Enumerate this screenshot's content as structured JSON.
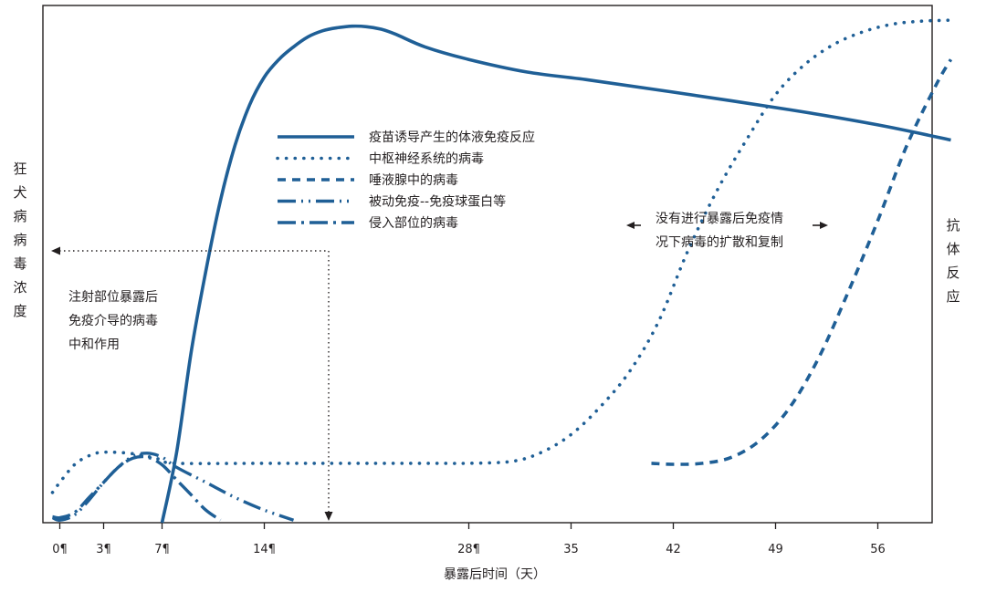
{
  "colors": {
    "series": "#1f5f96",
    "frame": "#231f20",
    "arrow": "#231f20",
    "background": "#ffffff"
  },
  "chart_data": {
    "type": "line",
    "xlabel": "暴露后时间（天）",
    "ylabel_left": "狂犬病病毒浓度",
    "ylabel_right": "抗体反应",
    "xlim": [
      -1,
      63
    ],
    "ylim": [
      0,
      100
    ],
    "y_ticks_shown": false,
    "grid": false,
    "legend_position": "top-center",
    "x_ticks": [
      {
        "value": 0,
        "label": "0¶"
      },
      {
        "value": 3,
        "label": "3¶"
      },
      {
        "value": 7,
        "label": "7¶"
      },
      {
        "value": 14,
        "label": "14¶"
      },
      {
        "value": 28,
        "label": "28¶"
      },
      {
        "value": 35,
        "label": "35"
      },
      {
        "value": 42,
        "label": "42"
      },
      {
        "value": 49,
        "label": "49"
      },
      {
        "value": 56,
        "label": "56"
      }
    ],
    "series": [
      {
        "name": "疫苗诱导产生的体液免疫反应",
        "style": "solid",
        "points": [
          [
            7,
            0
          ],
          [
            8,
            14
          ],
          [
            9,
            34
          ],
          [
            10,
            50
          ],
          [
            11,
            64
          ],
          [
            12,
            75
          ],
          [
            13,
            83
          ],
          [
            14,
            88.5
          ],
          [
            15,
            92
          ],
          [
            16,
            94.5
          ],
          [
            17,
            96.5
          ],
          [
            18,
            97.7
          ],
          [
            19,
            98.3
          ],
          [
            20,
            98.6
          ],
          [
            21,
            98.5
          ],
          [
            22,
            98
          ],
          [
            23,
            97
          ],
          [
            25,
            94.5
          ],
          [
            28,
            92
          ],
          [
            32,
            89.5
          ],
          [
            36,
            88
          ],
          [
            42,
            85.5
          ],
          [
            50,
            82
          ],
          [
            56,
            79
          ],
          [
            61,
            76
          ]
        ]
      },
      {
        "name": "中枢神经系统的病毒",
        "style": "dotted",
        "points": [
          [
            -0.5,
            6
          ],
          [
            0,
            8
          ],
          [
            1,
            11.5
          ],
          [
            2,
            13.3
          ],
          [
            3,
            14
          ],
          [
            5,
            13.7
          ],
          [
            7,
            12.5
          ],
          [
            8,
            11.8
          ],
          [
            15,
            11.8
          ],
          [
            25,
            11.8
          ],
          [
            28,
            11.8
          ],
          [
            31,
            12.2
          ],
          [
            33,
            14
          ],
          [
            35,
            17.5
          ],
          [
            37,
            23
          ],
          [
            39,
            30
          ],
          [
            41,
            40
          ],
          [
            43,
            54
          ],
          [
            45,
            66
          ],
          [
            47,
            76
          ],
          [
            49,
            85
          ],
          [
            51,
            91
          ],
          [
            53,
            95
          ],
          [
            55,
            97.5
          ],
          [
            57,
            99
          ],
          [
            59,
            99.6
          ],
          [
            61,
            99.8
          ]
        ]
      },
      {
        "name": "唾液腺中的病毒",
        "style": "dashed",
        "points": [
          [
            40.5,
            11.8
          ],
          [
            42,
            11.6
          ],
          [
            44,
            11.8
          ],
          [
            46,
            13
          ],
          [
            48,
            16.5
          ],
          [
            50,
            23
          ],
          [
            52,
            33
          ],
          [
            54,
            46
          ],
          [
            56,
            60
          ],
          [
            58,
            75
          ],
          [
            60,
            87
          ],
          [
            61,
            92
          ]
        ]
      },
      {
        "name": "被动免疫--免疫球蛋白等",
        "style": "dash-dot-dot",
        "points": [
          [
            -0.5,
            1
          ],
          [
            0,
            0.5
          ],
          [
            1,
            1.5
          ],
          [
            2,
            4.5
          ],
          [
            3,
            8
          ],
          [
            4,
            11
          ],
          [
            5,
            13.2
          ],
          [
            6,
            13.8
          ],
          [
            7,
            13
          ],
          [
            8,
            11
          ],
          [
            10,
            8
          ],
          [
            12,
            5
          ],
          [
            14,
            2.5
          ],
          [
            16,
            0.5
          ]
        ]
      },
      {
        "name": "侵入部位的病毒",
        "style": "dash-dot",
        "points": [
          [
            -0.5,
            1.2
          ],
          [
            0,
            1
          ],
          [
            1,
            2
          ],
          [
            2,
            5
          ],
          [
            3,
            8
          ],
          [
            4,
            11
          ],
          [
            5,
            12.8
          ],
          [
            6,
            13
          ],
          [
            7,
            11.5
          ],
          [
            8,
            8.5
          ],
          [
            9,
            5.5
          ],
          [
            10,
            2.5
          ],
          [
            11,
            0.5
          ]
        ]
      }
    ],
    "annotations": [
      {
        "text": "注射部位暴露后免疫介导的病毒中和作用",
        "lines": [
          "注射部位暴露后",
          "免疫介导的病毒",
          "中和作用"
        ]
      },
      {
        "text": "没有进行暴露后免疫情况下病毒的扩散和复制",
        "lines": [
          "没有进行暴露后免疫情",
          "况下病毒的扩散和复制"
        ]
      }
    ]
  }
}
